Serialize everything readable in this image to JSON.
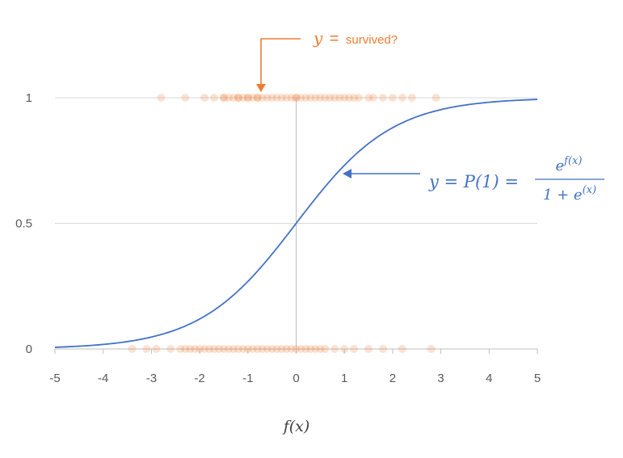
{
  "chart_data": {
    "type": "scatter",
    "xlabel": "f(x)",
    "xlim": [
      -5,
      5
    ],
    "ylim": [
      0,
      1
    ],
    "x_ticks": [
      "-5",
      "-4",
      "-3",
      "-2",
      "-1",
      "0",
      "1",
      "2",
      "3",
      "4",
      "5"
    ],
    "y_ticks": [
      "0",
      "0.5",
      "1"
    ],
    "grid": true,
    "series": [
      {
        "kind": "line",
        "color": "#4472C4",
        "function": "1/(1+exp(-x))",
        "x": [
          -5,
          -4.5,
          -4,
          -3.5,
          -3,
          -2.5,
          -2,
          -1.5,
          -1,
          -0.5,
          0,
          0.5,
          1,
          1.5,
          2,
          2.5,
          3,
          3.5,
          4,
          4.5,
          5
        ],
        "y": [
          0.007,
          0.011,
          0.018,
          0.029,
          0.047,
          0.076,
          0.119,
          0.182,
          0.269,
          0.378,
          0.5,
          0.622,
          0.731,
          0.818,
          0.881,
          0.924,
          0.953,
          0.971,
          0.982,
          0.989,
          0.993
        ]
      },
      {
        "kind": "scatter",
        "color": "#ED7D31",
        "y_value": 1,
        "x": [
          -2.8,
          -2.3,
          -1.9,
          -1.7,
          -1.5,
          -1.5,
          -1.4,
          -1.3,
          -1.2,
          -1.2,
          -1.1,
          -1.0,
          -1.0,
          -0.9,
          -0.8,
          -0.8,
          -0.7,
          -0.6,
          -0.5,
          -0.4,
          -0.3,
          -0.2,
          -0.1,
          0.0,
          0.0,
          0.1,
          0.2,
          0.3,
          0.4,
          0.5,
          0.6,
          0.7,
          0.8,
          0.9,
          1.0,
          1.1,
          1.2,
          1.3,
          1.5,
          1.6,
          1.8,
          2.0,
          2.2,
          2.4,
          2.9
        ]
      },
      {
        "kind": "scatter",
        "color": "#ED7D31",
        "y_value": 0,
        "x": [
          -3.4,
          -3.1,
          -2.9,
          -2.6,
          -2.4,
          -2.3,
          -2.2,
          -2.1,
          -2.0,
          -1.9,
          -1.8,
          -1.7,
          -1.6,
          -1.5,
          -1.4,
          -1.3,
          -1.2,
          -1.1,
          -1.0,
          -0.9,
          -0.8,
          -0.7,
          -0.6,
          -0.5,
          -0.4,
          -0.3,
          -0.2,
          -0.1,
          0.0,
          0.1,
          0.2,
          0.3,
          0.4,
          0.5,
          0.6,
          0.8,
          1.0,
          1.2,
          1.5,
          1.8,
          2.2,
          2.8
        ]
      }
    ],
    "annotations": {
      "survived": {
        "y": "y",
        "eq": "=",
        "text": "survived?"
      },
      "formula": {
        "lhs": "y = P(1) =",
        "numerator": "e^{f(x)}",
        "denominator": "1 + e^{(x)}"
      }
    }
  }
}
